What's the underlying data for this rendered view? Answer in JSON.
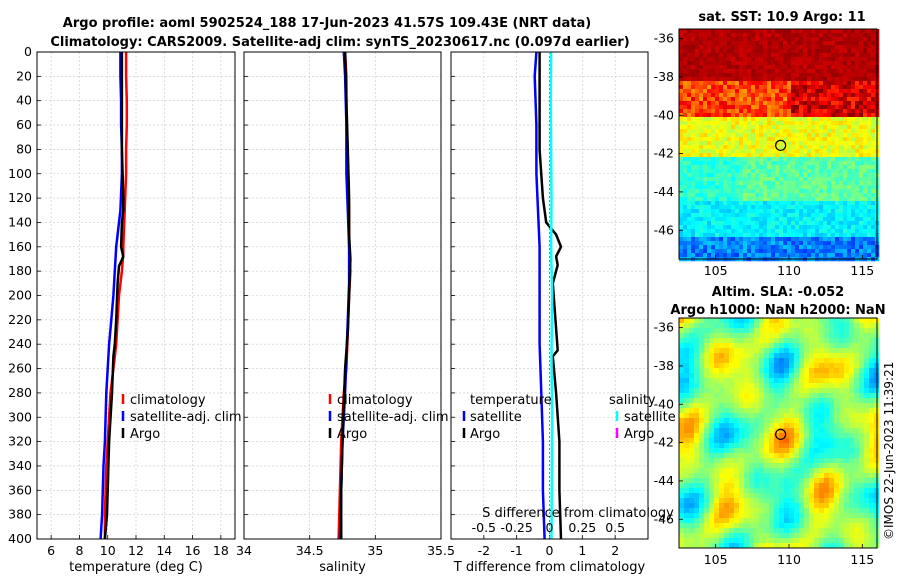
{
  "title_line1": "Argo profile: aoml 5902524_188 17-Jun-2023 41.57S 109.43E (NRT data)",
  "title_line2": "Climatology: CARS2009. Satellite-adj clim: synTS_20230617.nc (0.097d earlier)",
  "stamp": "©IMOS 22-Jun-2023 11:39:21",
  "colors": {
    "climatology": "#ff0000",
    "satellite": "#0000ff",
    "argo": "#000000",
    "sat_salinity": "#00ffff",
    "argo_salinity": "#ff00ff"
  },
  "chart_data": [
    {
      "type": "line",
      "id": "temperature",
      "xlabel": "temperature (deg C)",
      "ylabel": "",
      "xlim": [
        5,
        19
      ],
      "ylim": [
        0,
        400
      ],
      "xticks": [
        "6",
        "8",
        "10",
        "12",
        "14",
        "16",
        "18"
      ],
      "xtick_values": [
        6,
        8,
        10,
        12,
        14,
        16,
        18
      ],
      "yticks": [
        "0",
        "20",
        "40",
        "60",
        "80",
        "100",
        "120",
        "140",
        "160",
        "180",
        "200",
        "220",
        "240",
        "260",
        "280",
        "300",
        "320",
        "340",
        "360",
        "380",
        "400"
      ],
      "ytick_values": [
        0,
        20,
        40,
        60,
        80,
        100,
        120,
        140,
        160,
        180,
        200,
        220,
        240,
        260,
        280,
        300,
        320,
        340,
        360,
        380,
        400
      ],
      "grid": true,
      "legend": [
        "climatology",
        "satellite-adj. clim",
        "Argo"
      ],
      "series": [
        {
          "name": "climatology",
          "color": "#ff0000",
          "x": [
            11.3,
            11.3,
            11.35,
            11.35,
            11.3,
            11.3,
            11.2,
            11.1,
            11.1,
            11.0,
            10.8,
            10.6,
            10.4,
            10.2,
            10.1,
            10.0,
            9.9,
            9.8,
            9.8
          ],
          "y": [
            0,
            20,
            40,
            60,
            80,
            100,
            130,
            160,
            165,
            180,
            200,
            240,
            260,
            280,
            300,
            320,
            340,
            380,
            400
          ]
        },
        {
          "name": "satellite-adj. clim",
          "color": "#0000ff",
          "x": [
            10.9,
            10.9,
            10.95,
            10.95,
            11.0,
            11.0,
            10.9,
            10.6,
            10.5,
            10.4,
            10.25,
            10.1,
            10.0,
            9.9,
            9.85,
            9.8,
            9.7,
            9.6,
            9.5
          ],
          "y": [
            0,
            20,
            40,
            60,
            80,
            100,
            130,
            160,
            180,
            200,
            220,
            240,
            260,
            280,
            300,
            320,
            340,
            380,
            400
          ]
        },
        {
          "name": "Argo",
          "color": "#000000",
          "x": [
            11.0,
            11.0,
            11.0,
            11.05,
            11.1,
            11.1,
            11.0,
            10.95,
            11.1,
            10.8,
            10.7,
            10.6,
            10.5,
            10.4,
            10.3,
            10.1,
            10.05,
            9.95,
            9.8
          ],
          "y": [
            0,
            40,
            80,
            100,
            120,
            130,
            140,
            160,
            168,
            176,
            190,
            220,
            240,
            250,
            280,
            320,
            340,
            380,
            400
          ]
        }
      ]
    },
    {
      "type": "line",
      "id": "salinity",
      "xlabel": "salinity",
      "xlim": [
        34,
        35.5
      ],
      "ylim": [
        0,
        400
      ],
      "xticks": [
        "34",
        "34.5",
        "35",
        "35.5"
      ],
      "xtick_values": [
        34,
        34.5,
        35,
        35.5
      ],
      "grid": true,
      "legend": [
        "climatology",
        "satellite-adj. clim",
        "Argo"
      ],
      "series": [
        {
          "name": "climatology",
          "color": "#ff0000",
          "x": [
            34.77,
            34.78,
            34.78,
            34.79,
            34.8,
            34.8,
            34.81,
            34.8,
            34.79,
            34.78,
            34.76,
            34.75,
            34.74,
            34.73,
            34.72
          ],
          "y": [
            0,
            20,
            60,
            100,
            130,
            160,
            180,
            200,
            230,
            260,
            280,
            300,
            320,
            360,
            400
          ]
        },
        {
          "name": "satellite-adj. clim",
          "color": "#0000ff",
          "x": [
            34.76,
            34.77,
            34.78,
            34.78,
            34.79,
            34.8,
            34.8,
            34.79,
            34.78,
            34.77,
            34.76,
            34.75,
            34.74,
            34.73
          ],
          "y": [
            0,
            20,
            60,
            100,
            130,
            160,
            190,
            220,
            250,
            280,
            300,
            320,
            360,
            400
          ]
        },
        {
          "name": "Argo",
          "color": "#000000",
          "x": [
            34.77,
            34.78,
            34.79,
            34.8,
            34.8,
            34.81,
            34.8,
            34.79,
            34.77,
            34.76,
            34.75,
            34.74,
            34.74
          ],
          "y": [
            0,
            40,
            80,
            120,
            150,
            170,
            200,
            230,
            260,
            290,
            320,
            360,
            400
          ]
        }
      ]
    },
    {
      "type": "line",
      "id": "difference",
      "xlabel": "T difference from climatology",
      "xlim": [
        -3,
        3
      ],
      "ylim": [
        0,
        400
      ],
      "xticks": [
        "-2",
        "-1",
        "0",
        "1",
        "2"
      ],
      "xtick_values": [
        -2,
        -1,
        0,
        1,
        2
      ],
      "top_label": "S difference from climatology",
      "top_ticks": [
        "-0.5",
        "-0.25",
        "0",
        "0.25",
        "0.5"
      ],
      "top_tick_values": [
        -2,
        -1,
        0,
        1,
        2
      ],
      "grid": true,
      "legend_temperature": {
        "heading": "temperature",
        "items": [
          "satellite",
          "Argo"
        ]
      },
      "legend_salinity": {
        "heading": "salinity",
        "items": [
          "satellite",
          "Argo"
        ]
      },
      "series": [
        {
          "name": "temperature satellite",
          "color": "#0000ff",
          "x": [
            -0.4,
            -0.45,
            -0.4,
            -0.4,
            -0.35,
            -0.3,
            -0.3,
            -0.3,
            -0.25,
            -0.2,
            -0.2,
            -0.15
          ],
          "y": [
            0,
            20,
            60,
            100,
            130,
            160,
            200,
            240,
            280,
            320,
            360,
            400
          ]
        },
        {
          "name": "temperature Argo",
          "color": "#000000",
          "x": [
            -0.3,
            -0.3,
            -0.3,
            -0.2,
            -0.1,
            0.2,
            0.35,
            0.2,
            0.25,
            0.1,
            0.25,
            0.1,
            0.2,
            0.3,
            0.3,
            0.35
          ],
          "y": [
            0,
            40,
            80,
            120,
            140,
            150,
            160,
            168,
            175,
            190,
            245,
            250,
            280,
            320,
            360,
            400
          ]
        },
        {
          "name": "salinity satellite",
          "color": "#00ffff",
          "x": [
            0.05,
            0.04,
            0.05,
            0.06,
            0.05,
            0.08,
            0.06,
            0.08,
            0.07,
            0.06
          ],
          "y": [
            0,
            40,
            80,
            120,
            160,
            200,
            250,
            300,
            350,
            400
          ]
        }
      ]
    },
    {
      "type": "heatmap",
      "id": "sst_map",
      "title": "sat. SST: 10.9 Argo: 11",
      "xlim": [
        102.5,
        116
      ],
      "ylim": [
        -47.5,
        -35.5
      ],
      "xticks": [
        "105",
        "110",
        "115"
      ],
      "xtick_values": [
        105,
        110,
        115
      ],
      "yticks": [
        "-36",
        "-38",
        "-40",
        "-42",
        "-44",
        "-46"
      ],
      "ytick_values": [
        -36,
        -38,
        -40,
        -42,
        -44,
        -46
      ],
      "marker": {
        "lon": 109.43,
        "lat": -41.57
      }
    },
    {
      "type": "heatmap",
      "id": "sla_map",
      "title_line1": "Altim. SLA: -0.052",
      "title_line2": "Argo h1000: NaN h2000: NaN",
      "xlim": [
        102.5,
        116
      ],
      "ylim": [
        -47.5,
        -35.5
      ],
      "xticks": [
        "105",
        "110",
        "115"
      ],
      "xtick_values": [
        105,
        110,
        115
      ],
      "yticks": [
        "-36",
        "-38",
        "-40",
        "-42",
        "-44",
        "-46"
      ],
      "ytick_values": [
        -36,
        -38,
        -40,
        -42,
        -44,
        -46
      ],
      "marker": {
        "lon": 109.43,
        "lat": -41.57
      }
    }
  ]
}
